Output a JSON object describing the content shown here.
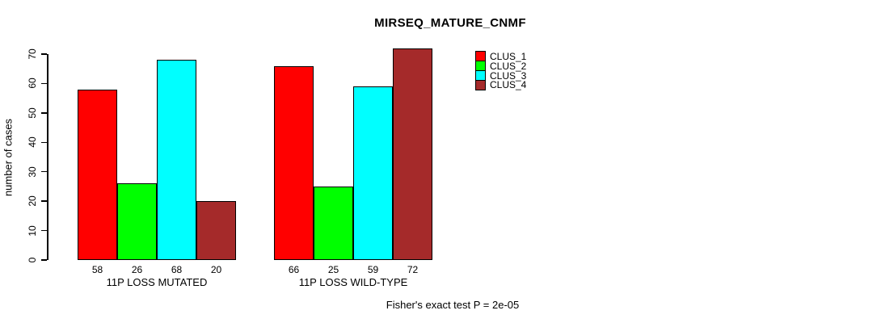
{
  "title": "MIRSEQ_MATURE_CNMF",
  "y_axis": {
    "label": "number of cases",
    "ticks": [
      0,
      10,
      20,
      30,
      40,
      50,
      60,
      70
    ]
  },
  "x_axis": {
    "group_labels": [
      "11P LOSS MUTATED",
      "11P LOSS WILD-TYPE"
    ]
  },
  "legend": {
    "items": [
      {
        "label": "CLUS_1",
        "color": "#FF0000"
      },
      {
        "label": "CLUS_2",
        "color": "#00FF00"
      },
      {
        "label": "CLUS_3",
        "color": "#00FFFF"
      },
      {
        "label": "CLUS_4",
        "color": "#A52A2A"
      }
    ]
  },
  "footnote": "Fisher's exact test P = 2e-05",
  "chart_data": {
    "type": "bar",
    "title": "MIRSEQ_MATURE_CNMF",
    "ylabel": "number of cases",
    "xlabel": "",
    "ylim": [
      0,
      70
    ],
    "ytick_step": 10,
    "grid": false,
    "legend_position": "top-right",
    "categories": [
      "11P LOSS MUTATED",
      "11P LOSS WILD-TYPE"
    ],
    "series": [
      {
        "name": "CLUS_1",
        "color": "#FF0000",
        "values": [
          58,
          66
        ]
      },
      {
        "name": "CLUS_2",
        "color": "#00FF00",
        "values": [
          26,
          25
        ]
      },
      {
        "name": "CLUS_3",
        "color": "#00FFFF",
        "values": [
          68,
          59
        ]
      },
      {
        "name": "CLUS_4",
        "color": "#A52A2A",
        "values": [
          20,
          72
        ]
      }
    ],
    "show_bar_values": true,
    "annotation": "Fisher's exact test P = 2e-05"
  }
}
